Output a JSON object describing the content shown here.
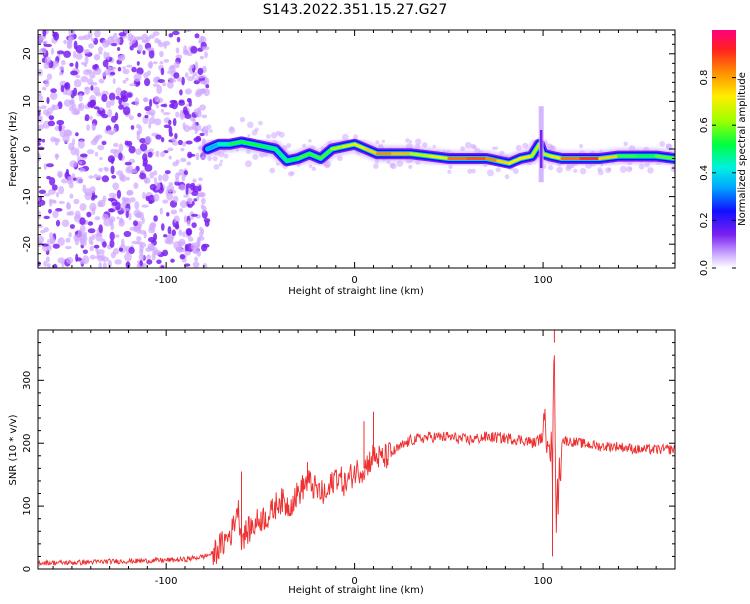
{
  "title": "S143.2022.351.15.27.G27",
  "colors": {
    "snr_line": "#ee3030",
    "scatter_purple": "#7a20f0",
    "scatter_light": "#cfa8ff"
  },
  "chart_data": [
    {
      "type": "heatmap",
      "xlabel": "Height of straight line (km)",
      "ylabel": "Frequency (Hz)",
      "xlim": [
        -168,
        170
      ],
      "ylim": [
        -25,
        25
      ],
      "x_ticks": [
        -100,
        0,
        100
      ],
      "x_tick_labels": [
        "-100",
        "0",
        "100"
      ],
      "y_ticks": [
        -20,
        -10,
        0,
        10,
        20
      ],
      "y_tick_labels": [
        "-20",
        "-10",
        "0",
        "10",
        "20"
      ],
      "noise_region_x": [
        -168,
        -78
      ],
      "ridge": {
        "x": [
          -78,
          -72,
          -66,
          -60,
          -54,
          -48,
          -42,
          -36,
          -30,
          -24,
          -18,
          -12,
          -6,
          0,
          6,
          12,
          20,
          30,
          40,
          50,
          60,
          70,
          76,
          82,
          88,
          94,
          98,
          100,
          104,
          110,
          120,
          130,
          140,
          150,
          160,
          170
        ],
        "y": [
          0,
          1,
          1,
          1.5,
          1,
          0.5,
          0,
          -2.5,
          -2,
          -1,
          -2,
          0,
          0.5,
          1,
          0,
          -1,
          -1,
          -1,
          -1.5,
          -2,
          -2,
          -2,
          -2.5,
          -3,
          -2,
          -1.5,
          1,
          -1,
          -1.5,
          -2,
          -2,
          -2,
          -1.5,
          -1.5,
          -1.5,
          -2
        ],
        "amplitude": [
          0.3,
          0.4,
          0.5,
          0.55,
          0.5,
          0.55,
          0.45,
          0.5,
          0.5,
          0.6,
          0.5,
          0.6,
          0.65,
          0.7,
          0.7,
          0.8,
          0.85,
          0.7,
          0.6,
          0.8,
          0.9,
          0.85,
          0.8,
          0.7,
          0.75,
          0.7,
          0.6,
          0.7,
          0.6,
          0.8,
          0.9,
          0.9,
          0.6,
          0.5,
          0.55,
          0.6
        ]
      },
      "colorbar": {
        "label": "Normalized spectral amplitude",
        "range": [
          0,
          1
        ],
        "ticks": [
          0.0,
          0.2,
          0.4,
          0.6,
          0.8
        ],
        "tick_labels": [
          "0.0",
          "0.2",
          "0.4",
          "0.6",
          "0.8"
        ]
      }
    },
    {
      "type": "line",
      "xlabel": "Height of straight line (km)",
      "ylabel": "SNR (10 * v/v)",
      "xlim": [
        -168,
        170
      ],
      "ylim": [
        0,
        380
      ],
      "x_ticks": [
        -100,
        0,
        100
      ],
      "x_tick_labels": [
        "-100",
        "0",
        "100"
      ],
      "y_ticks": [
        0,
        100,
        200,
        300
      ],
      "y_tick_labels": [
        "0",
        "100",
        "200",
        "300"
      ],
      "grid": false,
      "series": [
        {
          "x": [
            -168,
            -150,
            -130,
            -110,
            -90,
            -80,
            -75,
            -70,
            -65,
            -62,
            -60,
            -55,
            -50,
            -45,
            -40,
            -35,
            -30,
            -25,
            -20,
            -15,
            -10,
            -5,
            0,
            5,
            10,
            15,
            20,
            25,
            30,
            40,
            50,
            60,
            70,
            80,
            90,
            95,
            100,
            103,
            105,
            106,
            107,
            110,
            120,
            130,
            140,
            150,
            160,
            170
          ],
          "y": [
            10,
            10,
            12,
            13,
            15,
            20,
            25,
            40,
            60,
            100,
            50,
            65,
            80,
            85,
            110,
            100,
            120,
            140,
            125,
            115,
            150,
            135,
            155,
            160,
            180,
            175,
            185,
            195,
            205,
            210,
            210,
            205,
            210,
            208,
            205,
            200,
            210,
            230,
            160,
            360,
            80,
            205,
            200,
            195,
            195,
            190,
            190,
            190
          ],
          "spikes": [
            {
              "x": -60,
              "y": 155
            },
            {
              "x": -25,
              "y": 170
            },
            {
              "x": 5,
              "y": 235
            },
            {
              "x": 10,
              "y": 250
            },
            {
              "x": 106,
              "y": 380
            },
            {
              "x": 105,
              "y": 20
            }
          ]
        }
      ]
    }
  ]
}
